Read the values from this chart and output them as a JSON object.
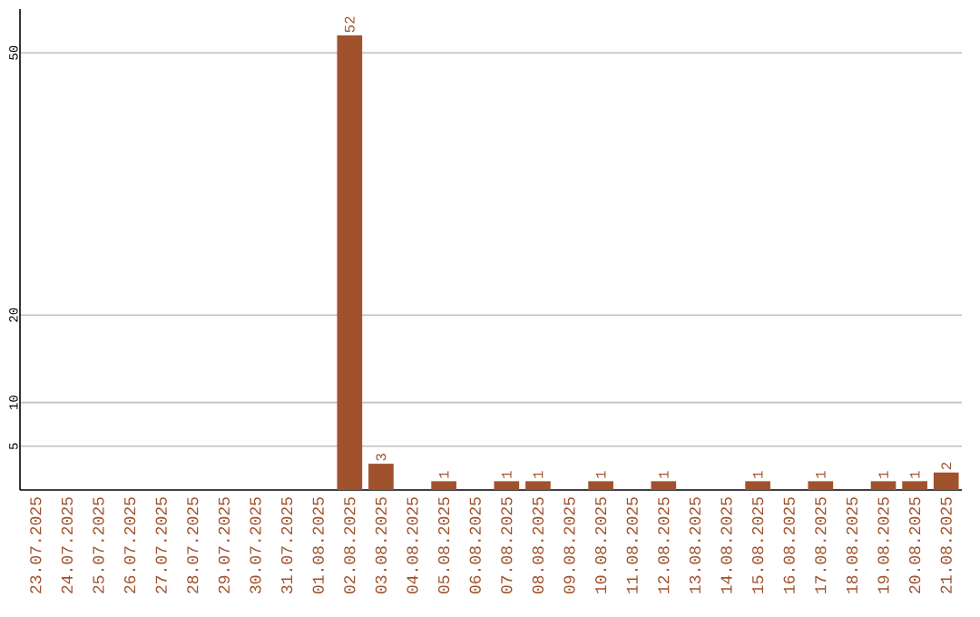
{
  "chart_data": {
    "type": "bar",
    "categories": [
      "23.07.2025",
      "24.07.2025",
      "25.07.2025",
      "26.07.2025",
      "27.07.2025",
      "28.07.2025",
      "29.07.2025",
      "30.07.2025",
      "31.07.2025",
      "01.08.2025",
      "02.08.2025",
      "03.08.2025",
      "04.08.2025",
      "05.08.2025",
      "06.08.2025",
      "07.08.2025",
      "08.08.2025",
      "09.08.2025",
      "10.08.2025",
      "11.08.2025",
      "12.08.2025",
      "13.08.2025",
      "14.08.2025",
      "15.08.2025",
      "16.08.2025",
      "17.08.2025",
      "18.08.2025",
      "19.08.2025",
      "20.08.2025",
      "21.08.2025"
    ],
    "values": [
      0,
      0,
      0,
      0,
      0,
      0,
      0,
      0,
      0,
      0,
      52,
      3,
      0,
      1,
      0,
      1,
      1,
      0,
      1,
      0,
      1,
      0,
      0,
      1,
      0,
      1,
      0,
      1,
      1,
      2
    ],
    "value_labels": [
      null,
      null,
      null,
      null,
      null,
      null,
      null,
      null,
      null,
      null,
      "52",
      "3",
      null,
      "1",
      null,
      "1",
      "1",
      null,
      "1",
      null,
      "1",
      null,
      null,
      "1",
      null,
      "1",
      null,
      "1",
      "1",
      "2"
    ],
    "color": "#a0522d",
    "ylim": [
      0,
      55
    ],
    "yticks": [
      5,
      10,
      20,
      50
    ],
    "grid": "y"
  }
}
